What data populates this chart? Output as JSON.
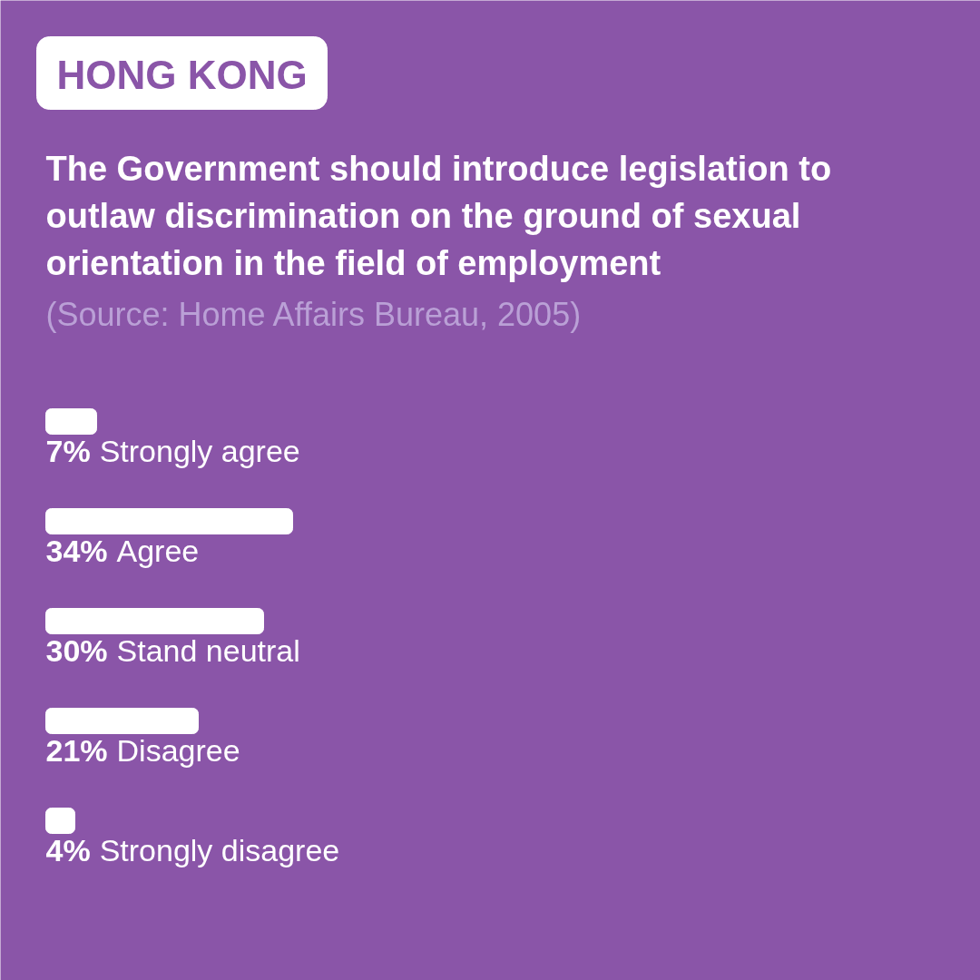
{
  "chart_data": {
    "type": "bar",
    "orientation": "horizontal",
    "title": "The Government should introduce legislation to outlaw discrimination on the ground of sexual orientation in the field of employment",
    "annotations": [
      "HONG KONG",
      "(Source: Home Affairs Bureau, 2005)"
    ],
    "categories": [
      "Strongly agree",
      "Agree",
      "Stand neutral",
      "Disagree",
      "Strongly disagree"
    ],
    "values": [
      7,
      34,
      30,
      21,
      4
    ],
    "value_labels": [
      "7%",
      "34%",
      "30%",
      "21%",
      "4%"
    ],
    "color": "#ffffff"
  }
}
